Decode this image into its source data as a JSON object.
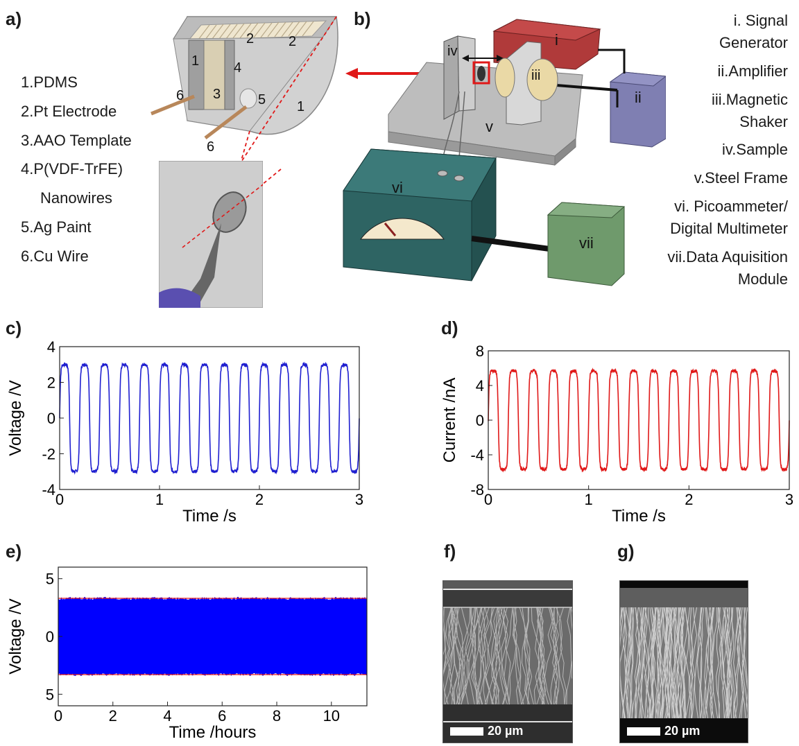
{
  "panels": {
    "a": {
      "label": "a)",
      "legend": [
        "1.PDMS",
        "2.Pt Electrode",
        "3.AAO Template",
        "4.P(VDF-TrFE)",
        "Nanowires",
        "5.Ag Paint",
        "6.Cu Wire"
      ],
      "callouts": [
        "1",
        "2",
        "2",
        "4",
        "3",
        "5",
        "6",
        "6",
        "1"
      ]
    },
    "b": {
      "label": "b)",
      "components": [
        "i",
        "ii",
        "iii",
        "iv",
        "v",
        "vi",
        "vii"
      ],
      "legend": [
        "i.   Signal",
        "Generator",
        "ii.Amplifier",
        "iii.Magnetic",
        "Shaker",
        "iv.Sample",
        "v.Steel Frame",
        "vi. Picoammeter/",
        "Digital Multimeter",
        "vii.Data Aquisition",
        "Module"
      ]
    },
    "c": {
      "label": "c)"
    },
    "d": {
      "label": "d)"
    },
    "e": {
      "label": "e)"
    },
    "f": {
      "label": "f)",
      "scalebar": "20 µm"
    },
    "g": {
      "label": "g)",
      "scalebar": "20 µm"
    }
  },
  "chart_data": [
    {
      "id": "c",
      "type": "line",
      "xlabel": "Time /s",
      "ylabel": "Voltage /V",
      "xlim": [
        0,
        3
      ],
      "ylim": [
        -4,
        4
      ],
      "xticks": [
        "0",
        "1",
        "2",
        "3"
      ],
      "yticks": [
        "4",
        "2",
        "0",
        "-2",
        "-4"
      ],
      "series": [
        {
          "color": "#1f1fd0",
          "frequency_hz": 5,
          "amplitude": 3.0,
          "waveform": "square-like"
        }
      ]
    },
    {
      "id": "d",
      "type": "line",
      "xlabel": "Time /s",
      "ylabel": "Current /nA",
      "xlim": [
        0,
        3
      ],
      "ylim": [
        -8,
        8
      ],
      "xticks": [
        "0",
        "1",
        "2",
        "3"
      ],
      "yticks": [
        "8",
        "4",
        "0",
        "-4",
        "-8"
      ],
      "series": [
        {
          "color": "#e01818",
          "frequency_hz": 5,
          "amplitude": 5.7,
          "waveform": "square-like"
        }
      ]
    },
    {
      "id": "e",
      "type": "area",
      "xlabel": "Time /hours",
      "ylabel": "Voltage /V",
      "xlim": [
        0,
        11.3
      ],
      "ylim": [
        -6,
        6
      ],
      "xticks": [
        "0",
        "2",
        "4",
        "6",
        "8",
        "10"
      ],
      "yticks": [
        "5",
        "0",
        "5"
      ],
      "series": [
        {
          "color": "#0000ff",
          "upper": 3.3,
          "lower": -3.3
        }
      ],
      "envelope_color": "#e01818"
    }
  ]
}
